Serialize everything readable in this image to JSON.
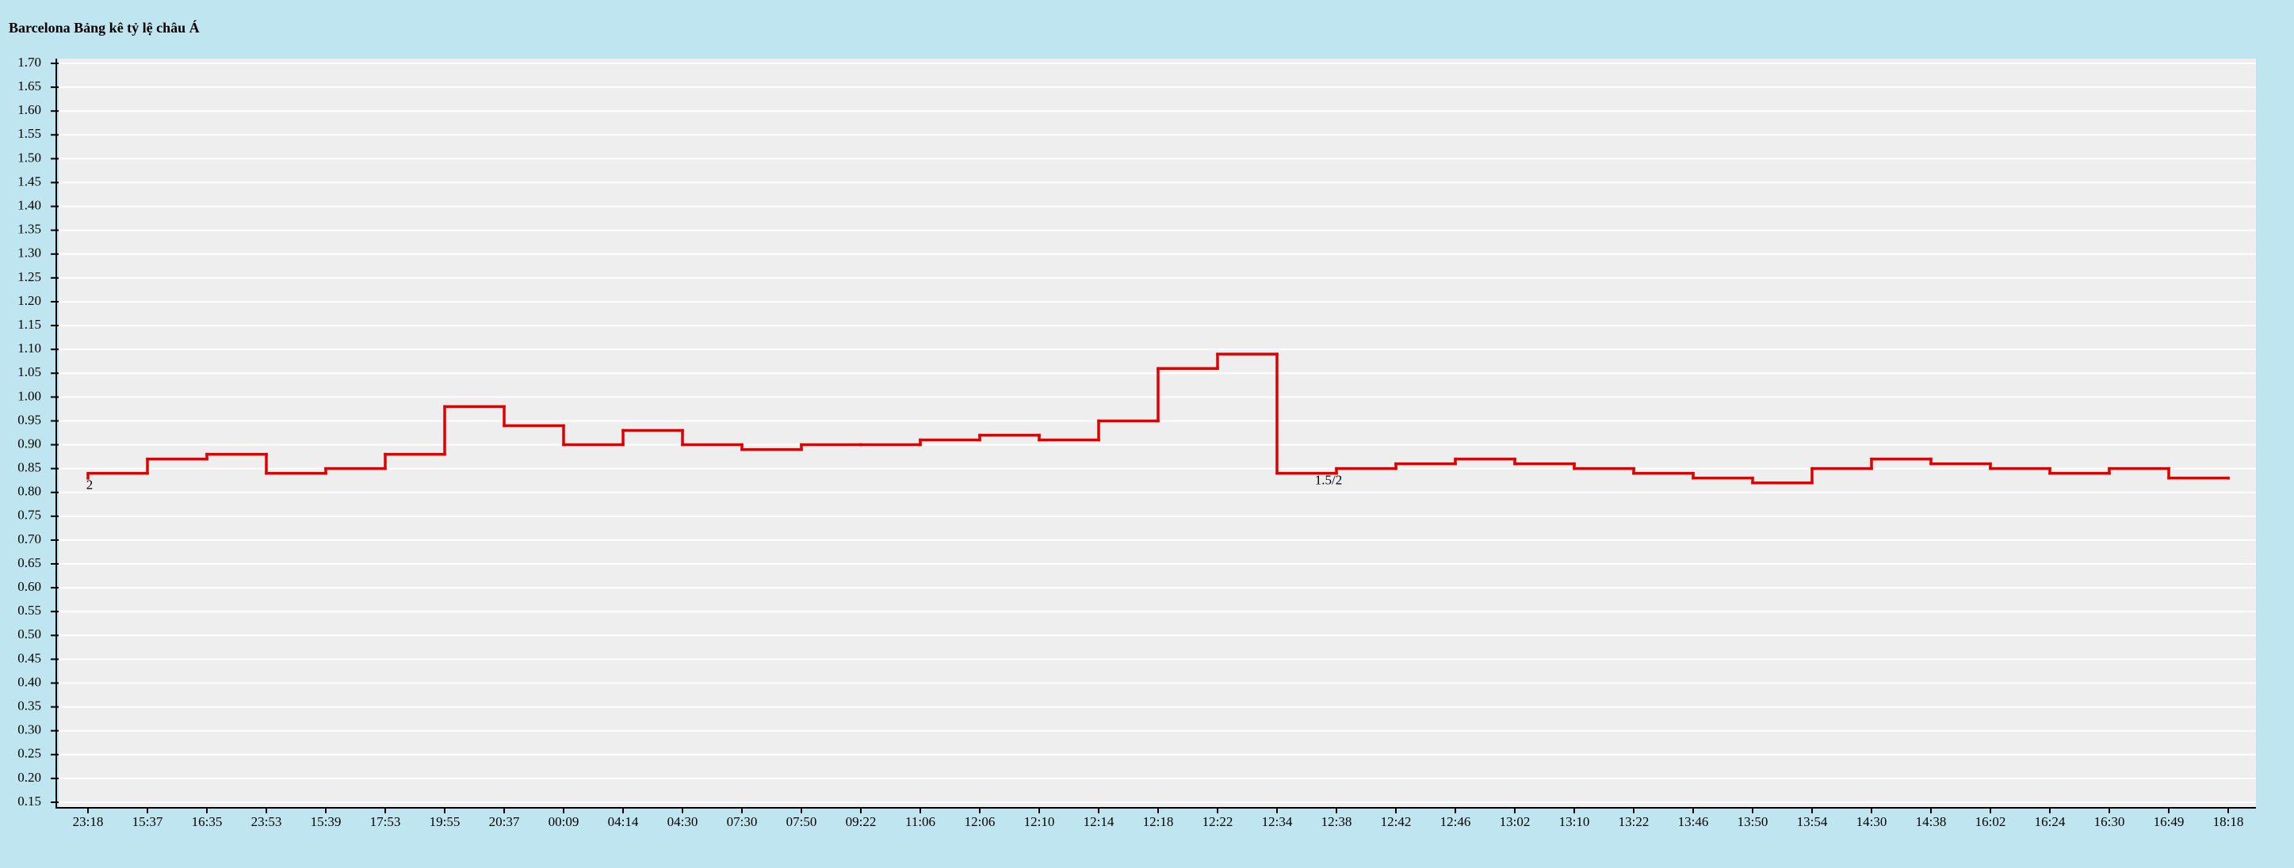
{
  "chart_data": {
    "type": "step",
    "title": "Barcelona Bảng kê tỷ lệ châu Á",
    "categories": [
      "23:18",
      "15:37",
      "16:35",
      "23:53",
      "15:39",
      "17:53",
      "19:55",
      "20:37",
      "00:09",
      "04:14",
      "04:30",
      "07:30",
      "07:50",
      "09:22",
      "11:06",
      "12:06",
      "12:10",
      "12:14",
      "12:18",
      "12:22",
      "12:34",
      "12:38",
      "12:42",
      "12:46",
      "13:02",
      "13:10",
      "13:22",
      "13:46",
      "13:50",
      "13:54",
      "14:30",
      "14:38",
      "16:02",
      "16:24",
      "16:30",
      "16:49",
      "18:18"
    ],
    "values": [
      0.84,
      0.87,
      0.88,
      0.84,
      0.85,
      0.88,
      0.98,
      0.94,
      0.9,
      0.93,
      0.9,
      0.89,
      0.9,
      0.9,
      0.91,
      0.92,
      0.91,
      0.95,
      1.06,
      1.09,
      0.84,
      0.85,
      0.86,
      0.87,
      0.86,
      0.85,
      0.84,
      0.83,
      0.82,
      0.85,
      0.87,
      0.86,
      0.85,
      0.84,
      0.85,
      0.83,
      0.83
    ],
    "color": "#e00000",
    "annotations": [
      {
        "index": 0,
        "text": "2"
      },
      {
        "index": 21,
        "text": "1.5/2"
      }
    ],
    "ylim": [
      0.14,
      1.71
    ],
    "yticks": [
      0.15,
      {
        "value": 0.2,
        "label": "0.20"
      },
      0.25,
      {
        "value": 0.3,
        "label": "0.30"
      },
      0.35,
      {
        "value": 0.4,
        "label": "0.40"
      },
      0.45,
      {
        "value": 0.5,
        "label": "0.50"
      },
      0.55,
      {
        "value": 0.6,
        "label": "0.60"
      },
      0.65,
      {
        "value": 0.7,
        "label": "0.70"
      },
      0.75,
      {
        "value": 0.8,
        "label": "0.80"
      },
      0.85,
      {
        "value": 0.9,
        "label": "0.90"
      },
      0.95,
      {
        "value": 1,
        "label": "1.00"
      },
      1.05,
      {
        "value": 1.1,
        "label": "1.10"
      },
      1.15,
      {
        "value": 1.2,
        "label": "1.20"
      },
      1.25,
      {
        "value": 1.3,
        "label": "1.30"
      },
      1.35,
      {
        "value": 1.4,
        "label": "1.40"
      },
      1.45,
      {
        "value": 1.5,
        "label": "1.50"
      },
      1.55,
      {
        "value": 1.6,
        "label": "1.60"
      },
      1.65,
      {
        "value": 1.7,
        "label": "1.70"
      }
    ],
    "grid": true
  }
}
